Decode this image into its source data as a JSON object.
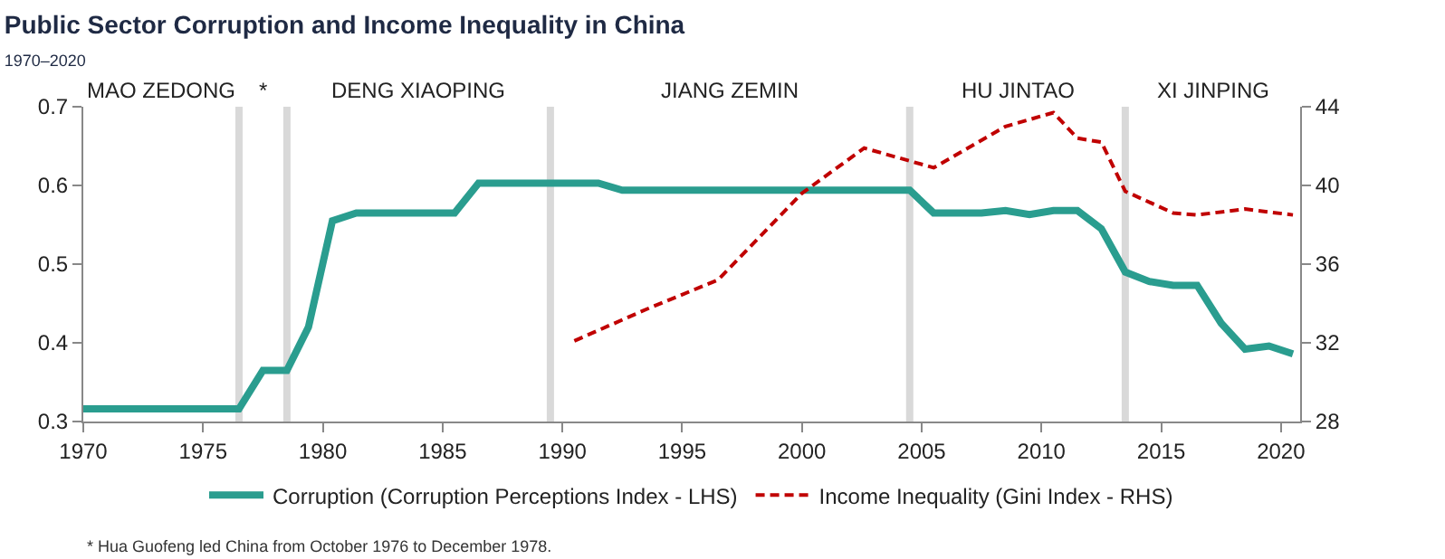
{
  "chart_data": {
    "type": "line",
    "title": "Public Sector Corruption and Income Inequality in China",
    "subtitle": "1970–2020",
    "series": [
      {
        "name": "Corruption (Corruption Perceptions Index - LHS)",
        "color": "#2a9d8f",
        "axis": "y",
        "line_style": "solid",
        "x": [
          1970,
          1976.5,
          1977.5,
          1978.5,
          1979.4,
          1980.4,
          1981.4,
          1985.5,
          1986.5,
          1991.5,
          1992.5,
          2004.5,
          2005.5,
          2007.5,
          2008.5,
          2009.5,
          2010.5,
          2011.5,
          2012.5,
          2013.5,
          2014.5,
          2015.5,
          2016.5,
          2017.5,
          2018.5,
          2019.5,
          2020.5
        ],
        "values": [
          0.316,
          0.316,
          0.365,
          0.365,
          0.42,
          0.555,
          0.565,
          0.565,
          0.603,
          0.603,
          0.594,
          0.594,
          0.565,
          0.565,
          0.568,
          0.563,
          0.568,
          0.568,
          0.545,
          0.49,
          0.478,
          0.473,
          0.473,
          0.425,
          0.392,
          0.396,
          0.386
        ]
      },
      {
        "name": "Income Inequality (Gini Index - RHS)",
        "color": "#c00000",
        "axis": "y2",
        "line_style": "dashed",
        "x": [
          1990.5,
          1993.5,
          1996.5,
          2000,
          2002.6,
          2005.5,
          2008.5,
          2010.5,
          2011.5,
          2012.5,
          2013.5,
          2015.5,
          2016.5,
          2018.5,
          2020.5
        ],
        "values": [
          32.1,
          33.7,
          35.2,
          39.6,
          41.9,
          40.9,
          43.0,
          43.7,
          42.4,
          42.2,
          39.7,
          38.6,
          38.5,
          38.8,
          38.5
        ]
      }
    ],
    "xlim": [
      1970,
      2020.8
    ],
    "xticks": [
      1970,
      1975,
      1980,
      1985,
      1990,
      1995,
      2000,
      2005,
      2010,
      2015,
      2020
    ],
    "ylim": [
      0.3,
      0.7
    ],
    "yticks": [
      0.3,
      0.4,
      0.5,
      0.6,
      0.7
    ],
    "y2lim": [
      28,
      44
    ],
    "y2ticks": [
      28,
      32,
      36,
      40,
      44
    ],
    "ref_lines": [
      {
        "axis": "x",
        "value": 1976.5,
        "color": "#d9d9d9"
      },
      {
        "axis": "x",
        "value": 1978.5,
        "color": "#d9d9d9"
      },
      {
        "axis": "x",
        "value": 1989.5,
        "color": "#d9d9d9"
      },
      {
        "axis": "x",
        "value": 2004.5,
        "color": "#d9d9d9"
      },
      {
        "axis": "x",
        "value": 2013.5,
        "color": "#d9d9d9"
      }
    ],
    "annotations": [
      "MAO ZEDONG",
      "*",
      "DENG XIAOPING",
      "JIANG ZEMIN",
      "HU JINTAO",
      "XI JINPING",
      "* Hua Guofeng led China from October 1976 to December 1978."
    ],
    "grid": false,
    "legend": "bottom",
    "marker": "none"
  }
}
